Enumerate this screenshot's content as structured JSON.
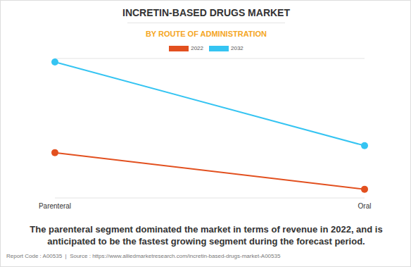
{
  "chart_data": {
    "type": "line",
    "title": "INCRETIN-BASED DRUGS MARKET",
    "subtitle": "BY ROUTE OF ADMINISTRATION",
    "categories": [
      "Parenteral",
      "Oral"
    ],
    "series": [
      {
        "name": "2022",
        "color": "#e2501f",
        "values": [
          2.6,
          0.5
        ]
      },
      {
        "name": "2032",
        "color": "#35c4f2",
        "values": [
          7.8,
          3.0
        ]
      }
    ],
    "ylim": [
      0,
      8
    ],
    "yticks": [
      0,
      1,
      2,
      3,
      4,
      5,
      6,
      7,
      8
    ],
    "grid": true,
    "tick_labels": "x",
    "marker": "circle",
    "legend": "top",
    "annotations": [
      "The parenteral segment dominated the market in terms of revenue in 2022, and is anticipated to be the fastest growing segment during the forecast period.",
      "Report Code : A00535  |  Source : https://www.alliedmarketresearch.com/incretin-based-drugs-market-A00535"
    ]
  }
}
